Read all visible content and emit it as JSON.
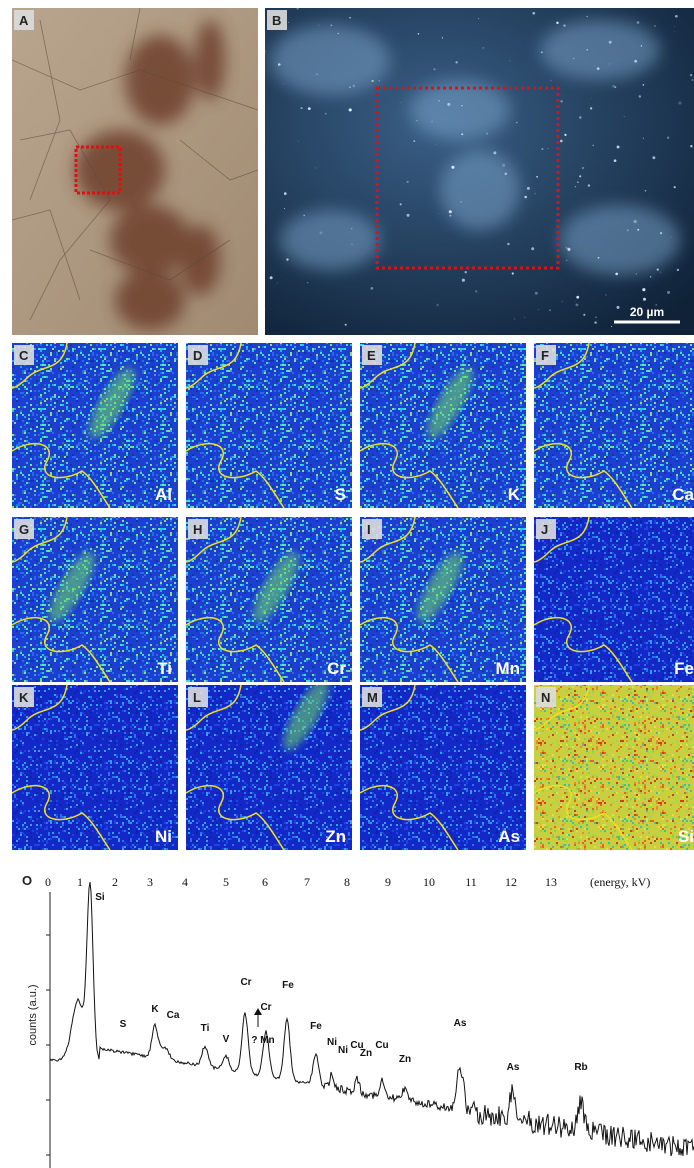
{
  "panels": [
    {
      "label": "A"
    },
    {
      "label": "B",
      "scale_bar": "20 µm"
    }
  ],
  "maps": [
    {
      "label": "C",
      "element": "Al"
    },
    {
      "label": "D",
      "element": "S"
    },
    {
      "label": "E",
      "element": "K"
    },
    {
      "label": "F",
      "element": "Ca"
    },
    {
      "label": "G",
      "element": "Ti"
    },
    {
      "label": "H",
      "element": "Cr"
    },
    {
      "label": "I",
      "element": "Mn"
    },
    {
      "label": "J",
      "element": "Fe"
    },
    {
      "label": "K",
      "element": "Ni"
    },
    {
      "label": "L",
      "element": "Zn"
    },
    {
      "label": "M",
      "element": "As"
    },
    {
      "label": "N",
      "element": "Si"
    }
  ],
  "spectrum": {
    "label": "O",
    "x_ticks": [
      0,
      1,
      2,
      3,
      4,
      5,
      6,
      7,
      8,
      9,
      10,
      11,
      12,
      13
    ],
    "x_unit": "(energy, kV)",
    "y_label": "counts (a.u.)",
    "peaks": [
      "Si",
      "S",
      "K",
      "Ca",
      "Ti",
      "V",
      "Cr",
      "Cr",
      "Fe",
      "Fe",
      "Ni",
      "Ni",
      "Cu",
      "Zn",
      "Cu",
      "Zn",
      "As",
      "As",
      "Rb"
    ],
    "annotation": "? Mn"
  }
}
